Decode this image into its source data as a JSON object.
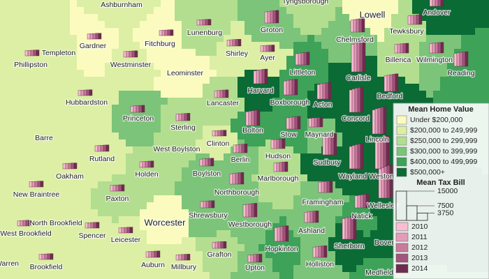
{
  "map": {
    "towns": [
      {
        "name": "Ashburnham",
        "home_value_class": 1
      },
      {
        "name": "Fitchburg",
        "home_value_class": 0,
        "tax_bill": [
          2640,
          2760,
          2850,
          2940,
          3000
        ]
      },
      {
        "name": "Lunenburg",
        "home_value_class": 2,
        "tax_bill": [
          2640,
          2760,
          2850,
          2940,
          3000
        ]
      },
      {
        "name": "Groton",
        "home_value_class": 3,
        "tax_bill": [
          5720,
          5980,
          6175,
          6370,
          6500
        ]
      },
      {
        "name": "Tyngsborough",
        "home_value_class": 2
      },
      {
        "name": "Lowell",
        "home_value_class": 0
      },
      {
        "name": "Andover",
        "home_value_class": 5,
        "tax_bill": [
          7920,
          8280,
          8550,
          8820,
          9000
        ]
      },
      {
        "name": "Chelmsford",
        "home_value_class": 3,
        "tax_bill": [
          6160,
          6440,
          6650,
          6860,
          7000
        ]
      },
      {
        "name": "Tewksbury",
        "home_value_class": 2,
        "tax_bill": [
          4400,
          4600,
          4750,
          4900,
          5000
        ]
      },
      {
        "name": "Billerica",
        "home_value_class": 2,
        "tax_bill": [
          4400,
          4600,
          4750,
          4900,
          5000
        ]
      },
      {
        "name": "Wilmington",
        "home_value_class": 3,
        "tax_bill": [
          4840,
          5060,
          5225,
          5390,
          5500
        ]
      },
      {
        "name": "Reading",
        "home_value_class": 4,
        "tax_bill": [
          6600,
          6900,
          7125,
          7350,
          7500
        ]
      },
      {
        "name": "Templeton",
        "home_value_class": 1,
        "tax_bill": [
          2640,
          2760,
          2850,
          2940,
          3000
        ]
      },
      {
        "name": "Phillipston",
        "home_value_class": 1
      },
      {
        "name": "Gardner",
        "home_value_class": 0,
        "tax_bill": [
          2640,
          2760,
          2850,
          2940,
          3000
        ]
      },
      {
        "name": "Westminster",
        "home_value_class": 1,
        "tax_bill": [
          2904,
          3036,
          3135,
          3234,
          3300
        ]
      },
      {
        "name": "Leominster",
        "home_value_class": 0
      },
      {
        "name": "Shirley",
        "home_value_class": 1,
        "tax_bill": [
          3080,
          3220,
          3325,
          3430,
          3500
        ]
      },
      {
        "name": "Ayer",
        "home_value_class": 1,
        "tax_bill": [
          2992,
          3128,
          3230,
          3332,
          3400
        ]
      },
      {
        "name": "Littleton",
        "home_value_class": 4,
        "tax_bill": [
          5720,
          5980,
          6175,
          6370,
          6500
        ]
      },
      {
        "name": "Hubbardston",
        "home_value_class": 1,
        "tax_bill": [
          2640,
          2760,
          2850,
          2940,
          3000
        ]
      },
      {
        "name": "Harvard",
        "home_value_class": 5,
        "tax_bill": [
          6600,
          6900,
          7125,
          7350,
          7500
        ]
      },
      {
        "name": "Lancaster",
        "home_value_class": 2,
        "tax_bill": [
          3520,
          3680,
          3800,
          3920,
          4000
        ]
      },
      {
        "name": "Boxborough",
        "home_value_class": 4,
        "tax_bill": [
          7040,
          7360,
          7600,
          7840,
          8000
        ]
      },
      {
        "name": "Acton",
        "home_value_class": 5,
        "tax_bill": [
          7480,
          7820,
          8075,
          8330,
          8500
        ]
      },
      {
        "name": "Carlisle",
        "home_value_class": 5,
        "tax_bill": [
          14080,
          14720,
          15200,
          15680,
          16000
        ]
      },
      {
        "name": "Bedford",
        "home_value_class": 5,
        "tax_bill": [
          7920,
          8280,
          8550,
          8820,
          9000
        ]
      },
      {
        "name": "Princeton",
        "home_value_class": 3,
        "tax_bill": [
          3168,
          3312,
          3420,
          3528,
          3600
        ]
      },
      {
        "name": "Sterling",
        "home_value_class": 2,
        "tax_bill": [
          3344,
          3496,
          3610,
          3724,
          3800
        ]
      },
      {
        "name": "Concord",
        "home_value_class": 5,
        "tax_bill": [
          11440,
          11960,
          12350,
          12740,
          13000
        ]
      },
      {
        "name": "Bolton",
        "home_value_class": 4,
        "tax_bill": [
          7040,
          7360,
          7600,
          7840,
          8000
        ]
      },
      {
        "name": "Stow",
        "home_value_class": 4,
        "tax_bill": [
          5720,
          5980,
          6175,
          6370,
          6500
        ]
      },
      {
        "name": "Maynard",
        "home_value_class": 3,
        "tax_bill": [
          4400,
          4600,
          4750,
          4900,
          5000
        ]
      },
      {
        "name": "Lincoln",
        "home_value_class": 5,
        "tax_bill": [
          12320,
          12880,
          13300,
          13720,
          14000
        ]
      },
      {
        "name": "Barre",
        "home_value_class": 1
      },
      {
        "name": "Clinton",
        "home_value_class": 1,
        "tax_bill": [
          2640,
          2760,
          2850,
          2940,
          3000
        ]
      },
      {
        "name": "West Boylston",
        "home_value_class": 2
      },
      {
        "name": "Hudson",
        "home_value_class": 2,
        "tax_bill": [
          4400,
          4600,
          4750,
          4900,
          5000
        ]
      },
      {
        "name": "Sudbury",
        "home_value_class": 5,
        "tax_bill": [
          9680,
          10120,
          10450,
          10780,
          11000
        ]
      },
      {
        "name": "Rutland",
        "home_value_class": 1,
        "tax_bill": [
          2904,
          3036,
          3135,
          3234,
          3300
        ]
      },
      {
        "name": "Berlin",
        "home_value_class": 3,
        "tax_bill": [
          3960,
          4140,
          4275,
          4410,
          4500
        ]
      },
      {
        "name": "Marlborough",
        "home_value_class": 2,
        "tax_bill": [
          4400,
          4600,
          4750,
          4900,
          5000
        ]
      },
      {
        "name": "Wayland",
        "home_value_class": 5,
        "tax_bill": [
          11440,
          11960,
          12350,
          12740,
          13000
        ]
      },
      {
        "name": "Weston",
        "home_value_class": 5,
        "tax_bill": [
          14960,
          15640,
          16150,
          16660,
          17000
        ]
      },
      {
        "name": "Oakham",
        "home_value_class": 1,
        "tax_bill": [
          2640,
          2760,
          2850,
          2940,
          3000
        ]
      },
      {
        "name": "Holden",
        "home_value_class": 2,
        "tax_bill": [
          2904,
          3036,
          3135,
          3234,
          3300
        ]
      },
      {
        "name": "Boylston",
        "home_value_class": 3,
        "tax_bill": [
          3520,
          3680,
          3800,
          3920,
          4000
        ]
      },
      {
        "name": "Northborough",
        "home_value_class": 3,
        "tax_bill": [
          5280,
          5520,
          5700,
          5880,
          6000
        ]
      },
      {
        "name": "Framingham",
        "home_value_class": 3,
        "tax_bill": [
          5280,
          5520,
          5700,
          5880,
          6000
        ]
      },
      {
        "name": "New Braintree",
        "home_value_class": 1,
        "tax_bill": [
          2640,
          2760,
          2850,
          2940,
          3000
        ]
      },
      {
        "name": "Paxton",
        "home_value_class": 2,
        "tax_bill": [
          2904,
          3036,
          3135,
          3234,
          3300
        ]
      },
      {
        "name": "Shrewsbury",
        "home_value_class": 3,
        "tax_bill": [
          3256,
          3404,
          3515,
          3626,
          3700
        ]
      },
      {
        "name": "Westborough",
        "home_value_class": 3,
        "tax_bill": [
          6160,
          6440,
          6650,
          6860,
          7000
        ]
      },
      {
        "name": "Natick",
        "home_value_class": 4,
        "tax_bill": [
          6160,
          6440,
          6650,
          6860,
          7000
        ]
      },
      {
        "name": "Wellesley",
        "home_value_class": 5,
        "tax_bill": [
          14960,
          15640,
          16150,
          16660,
          17000
        ]
      },
      {
        "name": "North Brookfield",
        "home_value_class": 1,
        "tax_bill": [
          2640,
          2760,
          2850,
          2940,
          3000
        ]
      },
      {
        "name": "Worcester",
        "home_value_class": 0
      },
      {
        "name": "Ashland",
        "home_value_class": 3,
        "tax_bill": [
          5280,
          5520,
          5700,
          5880,
          6000
        ]
      },
      {
        "name": "West Brookfield",
        "home_value_class": 1
      },
      {
        "name": "Spencer",
        "home_value_class": 1,
        "tax_bill": [
          2640,
          2760,
          2850,
          2940,
          3000
        ]
      },
      {
        "name": "Leicester",
        "home_value_class": 1,
        "tax_bill": [
          2640,
          2760,
          2850,
          2940,
          3000
        ]
      },
      {
        "name": "Hopkinton",
        "home_value_class": 4,
        "tax_bill": [
          7040,
          7360,
          7600,
          7840,
          8000
        ]
      },
      {
        "name": "Sherborn",
        "home_value_class": 5,
        "tax_bill": [
          10560,
          11040,
          11400,
          11760,
          12000
        ]
      },
      {
        "name": "Dover",
        "home_value_class": 5
      },
      {
        "name": "Warren",
        "home_value_class": 1
      },
      {
        "name": "Brookfield",
        "home_value_class": 1,
        "tax_bill": [
          2640,
          2760,
          2850,
          2940,
          3000
        ]
      },
      {
        "name": "Auburn",
        "home_value_class": 1,
        "tax_bill": [
          2904,
          3036,
          3135,
          3234,
          3300
        ]
      },
      {
        "name": "Grafton",
        "home_value_class": 2,
        "tax_bill": [
          3080,
          3220,
          3325,
          3430,
          3500
        ]
      },
      {
        "name": "Upton",
        "home_value_class": 3,
        "tax_bill": [
          3696,
          3864,
          3990,
          4116,
          4200
        ]
      },
      {
        "name": "Holliston",
        "home_value_class": 3,
        "tax_bill": [
          5280,
          5520,
          5700,
          5880,
          6000
        ]
      },
      {
        "name": "Millbury",
        "home_value_class": 1,
        "tax_bill": [
          2728,
          2852,
          2945,
          3038,
          3100
        ]
      },
      {
        "name": "Medfield",
        "home_value_class": 4
      }
    ],
    "legend": {
      "home_value_title": "Mean Home Value",
      "home_value_classes": [
        {
          "label": "Under $200,000",
          "color": "#fbfbbf"
        },
        {
          "label": "$200,000 to 249,999",
          "color": "#dcefa4"
        },
        {
          "label": "$250,000 to 299,999",
          "color": "#b3de8f"
        },
        {
          "label": "$300,000 to 399,999",
          "color": "#7cc47a"
        },
        {
          "label": "$400,000 to 499,999",
          "color": "#3ea259"
        },
        {
          "label": "$500,000+",
          "color": "#0b6b35"
        }
      ],
      "tax_title": "Mean Tax Bill",
      "tax_sizes": [
        15000,
        7500,
        3750
      ],
      "years": [
        {
          "label": "2010",
          "color": "#f6bed0"
        },
        {
          "label": "2011",
          "color": "#e39bb7"
        },
        {
          "label": "2012",
          "color": "#c97a9c"
        },
        {
          "label": "2013",
          "color": "#a0567c"
        },
        {
          "label": "2014",
          "color": "#702c4e"
        }
      ]
    }
  }
}
